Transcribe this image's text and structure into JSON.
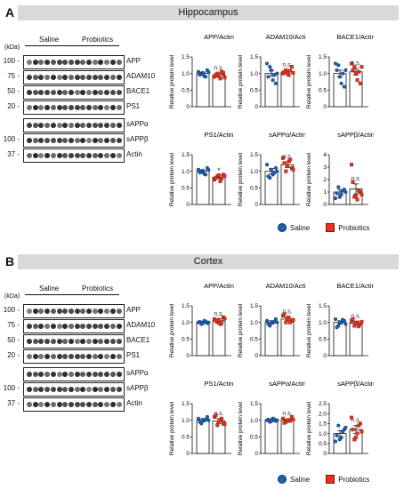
{
  "panels": [
    {
      "letter": "A",
      "region": "Hippocampus",
      "kda_label": "(kDa)",
      "groups": [
        "Saline",
        "Probiotics"
      ],
      "blots": [
        {
          "label": "APP",
          "mw": "100"
        },
        {
          "label": "ADAM10",
          "mw": "75"
        },
        {
          "label": "BACE1",
          "mw": "50"
        },
        {
          "label": "PS1",
          "mw": "20"
        },
        {
          "label": "sAPPα",
          "mw": ""
        },
        {
          "label": "sAPPβ",
          "mw": "100"
        },
        {
          "label": "Actin",
          "mw": "37"
        }
      ]
    },
    {
      "letter": "B",
      "region": "Cortex",
      "kda_label": "(kDa)",
      "groups": [
        "Saline",
        "Probiotics"
      ],
      "blots": [
        {
          "label": "APP",
          "mw": "100"
        },
        {
          "label": "ADAM10",
          "mw": "75"
        },
        {
          "label": "BACE1",
          "mw": "50"
        },
        {
          "label": "PS1",
          "mw": "20"
        },
        {
          "label": "sAPPα",
          "mw": ""
        },
        {
          "label": "sAPPβ",
          "mw": "100"
        },
        {
          "label": "Actin",
          "mw": "37"
        }
      ]
    }
  ],
  "legend": {
    "saline": "Saline",
    "probiotics": "Probiotics"
  },
  "colors": {
    "saline": "#1f5fb0",
    "probiotics": "#e8321e"
  },
  "chart_data": [
    {
      "type": "bar",
      "panel": "A",
      "title": "APP/Actin",
      "ylabel": "Relative protein level",
      "ylim": [
        0,
        1.5
      ],
      "yticks": [
        "0",
        "0.5",
        "1.0",
        "1.5"
      ],
      "categories": [
        "Saline",
        "Probiotics"
      ],
      "values": [
        1.0,
        0.95
      ],
      "errors": [
        0.04,
        0.05
      ],
      "points": [
        [
          1.05,
          0.98,
          0.92,
          1.1,
          0.96,
          1.02,
          0.9,
          1.04
        ],
        [
          0.9,
          1.0,
          0.85,
          1.02,
          0.96,
          0.92,
          1.05,
          0.88
        ]
      ],
      "annotation": "n.s."
    },
    {
      "type": "bar",
      "panel": "A",
      "title": "ADAM10/Actin",
      "ylabel": "Relative protein level",
      "ylim": [
        0,
        1.5
      ],
      "yticks": [
        "0",
        "0.5",
        "1.0",
        "1.5"
      ],
      "categories": [
        "Saline",
        "Probiotics"
      ],
      "values": [
        1.0,
        1.05
      ],
      "errors": [
        0.08,
        0.05
      ],
      "points": [
        [
          1.3,
          1.2,
          0.8,
          0.7,
          0.9,
          1.1,
          0.95,
          1.0
        ],
        [
          1.0,
          1.1,
          0.95,
          1.2,
          1.05,
          1.0,
          1.08,
          1.02
        ]
      ],
      "annotation": "n.s."
    },
    {
      "type": "bar",
      "panel": "A",
      "title": "BACE1/Actin",
      "ylabel": "Relative protein level",
      "ylim": [
        0,
        1.5
      ],
      "yticks": [
        "0",
        "0.5",
        "1.0",
        "1.5"
      ],
      "categories": [
        "Saline",
        "Probiotics"
      ],
      "values": [
        1.0,
        1.05
      ],
      "errors": [
        0.1,
        0.1
      ],
      "points": [
        [
          1.3,
          1.25,
          0.7,
          0.6,
          1.1,
          0.9,
          1.0,
          1.1
        ],
        [
          1.3,
          1.2,
          0.8,
          0.7,
          1.1,
          1.0,
          1.05,
          1.2
        ]
      ],
      "annotation": "n.s."
    },
    {
      "type": "bar",
      "panel": "A",
      "title": "PS1/Actin",
      "ylabel": "Relative protein level",
      "ylim": [
        0,
        1.5
      ],
      "yticks": [
        "0",
        "0.5",
        "1.0",
        "1.5"
      ],
      "categories": [
        "Saline",
        "Probiotics"
      ],
      "values": [
        1.0,
        0.82
      ],
      "errors": [
        0.04,
        0.04
      ],
      "points": [
        [
          1.05,
          0.98,
          0.92,
          1.1,
          0.96,
          1.02,
          0.9,
          1.04
        ],
        [
          0.75,
          0.85,
          0.7,
          0.9,
          0.8,
          0.88,
          0.78,
          0.86
        ]
      ],
      "annotation": "*"
    },
    {
      "type": "bar",
      "panel": "A",
      "title": "sAPPα/Actin",
      "ylabel": "Relative protein level",
      "ylim": [
        0,
        1.5
      ],
      "yticks": [
        "0",
        "0.5",
        "1.0",
        "1.5"
      ],
      "categories": [
        "Saline",
        "Probiotics"
      ],
      "values": [
        1.0,
        1.2
      ],
      "errors": [
        0.08,
        0.08
      ],
      "points": [
        [
          1.2,
          0.8,
          0.9,
          1.1,
          0.85,
          1.05,
          0.95,
          1.0
        ],
        [
          1.4,
          1.0,
          1.3,
          1.1,
          1.25,
          1.15,
          1.35,
          1.05
        ]
      ],
      "annotation": "n.s."
    },
    {
      "type": "bar",
      "panel": "A",
      "title": "sAPPβ/Actin",
      "ylabel": "Relative protein level",
      "ylim": [
        0,
        4
      ],
      "yticks": [
        "0",
        "1",
        "2",
        "3",
        "4"
      ],
      "categories": [
        "Saline",
        "Probiotics"
      ],
      "values": [
        1.0,
        1.25
      ],
      "errors": [
        0.2,
        0.4
      ],
      "points": [
        [
          0.5,
          1.4,
          0.8,
          1.2,
          0.9,
          0.6,
          1.1,
          1.0
        ],
        [
          3.2,
          0.6,
          0.4,
          1.0,
          1.8,
          0.7,
          1.1,
          0.8
        ]
      ],
      "annotation": "n.s."
    },
    {
      "type": "bar",
      "panel": "B",
      "title": "APP/Actin",
      "ylabel": "Relative protein level",
      "ylim": [
        0,
        1.5
      ],
      "yticks": [
        "0",
        "0.5",
        "1.0",
        "1.5"
      ],
      "categories": [
        "Saline",
        "Probiotics"
      ],
      "values": [
        1.0,
        1.05
      ],
      "errors": [
        0.03,
        0.05
      ],
      "points": [
        [
          1.0,
          0.95,
          1.05,
          0.98,
          1.02,
          0.97,
          1.03,
          1.0
        ],
        [
          1.1,
          1.0,
          0.95,
          1.15,
          1.05,
          1.08,
          0.98,
          1.12
        ]
      ],
      "annotation": "n.s."
    },
    {
      "type": "bar",
      "panel": "B",
      "title": "ADAM10/Actin",
      "ylabel": "Relative protein level",
      "ylim": [
        0,
        1.5
      ],
      "yticks": [
        "0",
        "0.5",
        "1.0",
        "1.5"
      ],
      "categories": [
        "Saline",
        "Probiotics"
      ],
      "values": [
        1.0,
        1.1
      ],
      "errors": [
        0.05,
        0.06
      ],
      "points": [
        [
          1.05,
          0.9,
          1.0,
          1.1,
          0.95,
          0.98,
          1.02,
          1.0
        ],
        [
          1.2,
          1.0,
          1.15,
          1.05,
          1.25,
          1.1,
          1.0,
          1.08
        ]
      ],
      "annotation": "n.s."
    },
    {
      "type": "bar",
      "panel": "B",
      "title": "BACE1/Actin",
      "ylabel": "Relative protein level",
      "ylim": [
        0,
        1.5
      ],
      "yticks": [
        "0",
        "0.5",
        "1.0",
        "1.5"
      ],
      "categories": [
        "Saline",
        "Probiotics"
      ],
      "values": [
        1.0,
        0.98
      ],
      "errors": [
        0.05,
        0.05
      ],
      "points": [
        [
          1.1,
          0.9,
          1.0,
          1.05,
          0.85,
          1.0,
          1.08,
          0.95
        ],
        [
          1.05,
          0.9,
          1.0,
          0.95,
          1.1,
          0.98,
          0.88,
          1.02
        ]
      ],
      "annotation": "n.s."
    },
    {
      "type": "bar",
      "panel": "B",
      "title": "PS1/Actin",
      "ylabel": "Relative protein level",
      "ylim": [
        0,
        1.5
      ],
      "yticks": [
        "0",
        "0.5",
        "1.0",
        "1.5"
      ],
      "categories": [
        "Saline",
        "Probiotics"
      ],
      "values": [
        1.0,
        0.98
      ],
      "errors": [
        0.05,
        0.07
      ],
      "points": [
        [
          1.05,
          0.9,
          1.0,
          1.1,
          0.95,
          0.98,
          1.02,
          1.0
        ],
        [
          1.1,
          0.85,
          1.0,
          0.9,
          1.15,
          0.95,
          1.05,
          0.88
        ]
      ],
      "annotation": "n.s."
    },
    {
      "type": "bar",
      "panel": "B",
      "title": "sAPPα/Actin",
      "ylabel": "Relative protein level",
      "ylim": [
        0,
        1.5
      ],
      "yticks": [
        "0",
        "0.5",
        "1.0",
        "1.5"
      ],
      "categories": [
        "Saline",
        "Probiotics"
      ],
      "values": [
        1.0,
        1.0
      ],
      "errors": [
        0.04,
        0.04
      ],
      "points": [
        [
          1.0,
          0.95,
          1.05,
          0.98,
          1.02,
          0.97,
          1.03,
          1.0
        ],
        [
          1.05,
          0.95,
          1.0,
          1.1,
          0.92,
          1.0,
          0.98,
          1.02
        ]
      ],
      "annotation": "n.s."
    },
    {
      "type": "bar",
      "panel": "B",
      "title": "sAPPβ/Actin",
      "ylabel": "Relative protein level",
      "ylim": [
        0,
        2.5
      ],
      "yticks": [
        "0",
        "0.5",
        "1.0",
        "1.5",
        "2.0",
        "2.5"
      ],
      "categories": [
        "Saline",
        "Probiotics"
      ],
      "values": [
        1.0,
        1.2
      ],
      "errors": [
        0.15,
        0.2
      ],
      "points": [
        [
          0.6,
          1.4,
          0.8,
          1.2,
          0.9,
          0.7,
          1.1,
          1.3
        ],
        [
          1.8,
          0.7,
          1.0,
          1.5,
          1.2,
          0.8,
          1.4,
          1.1
        ]
      ],
      "annotation": "n.s."
    }
  ]
}
